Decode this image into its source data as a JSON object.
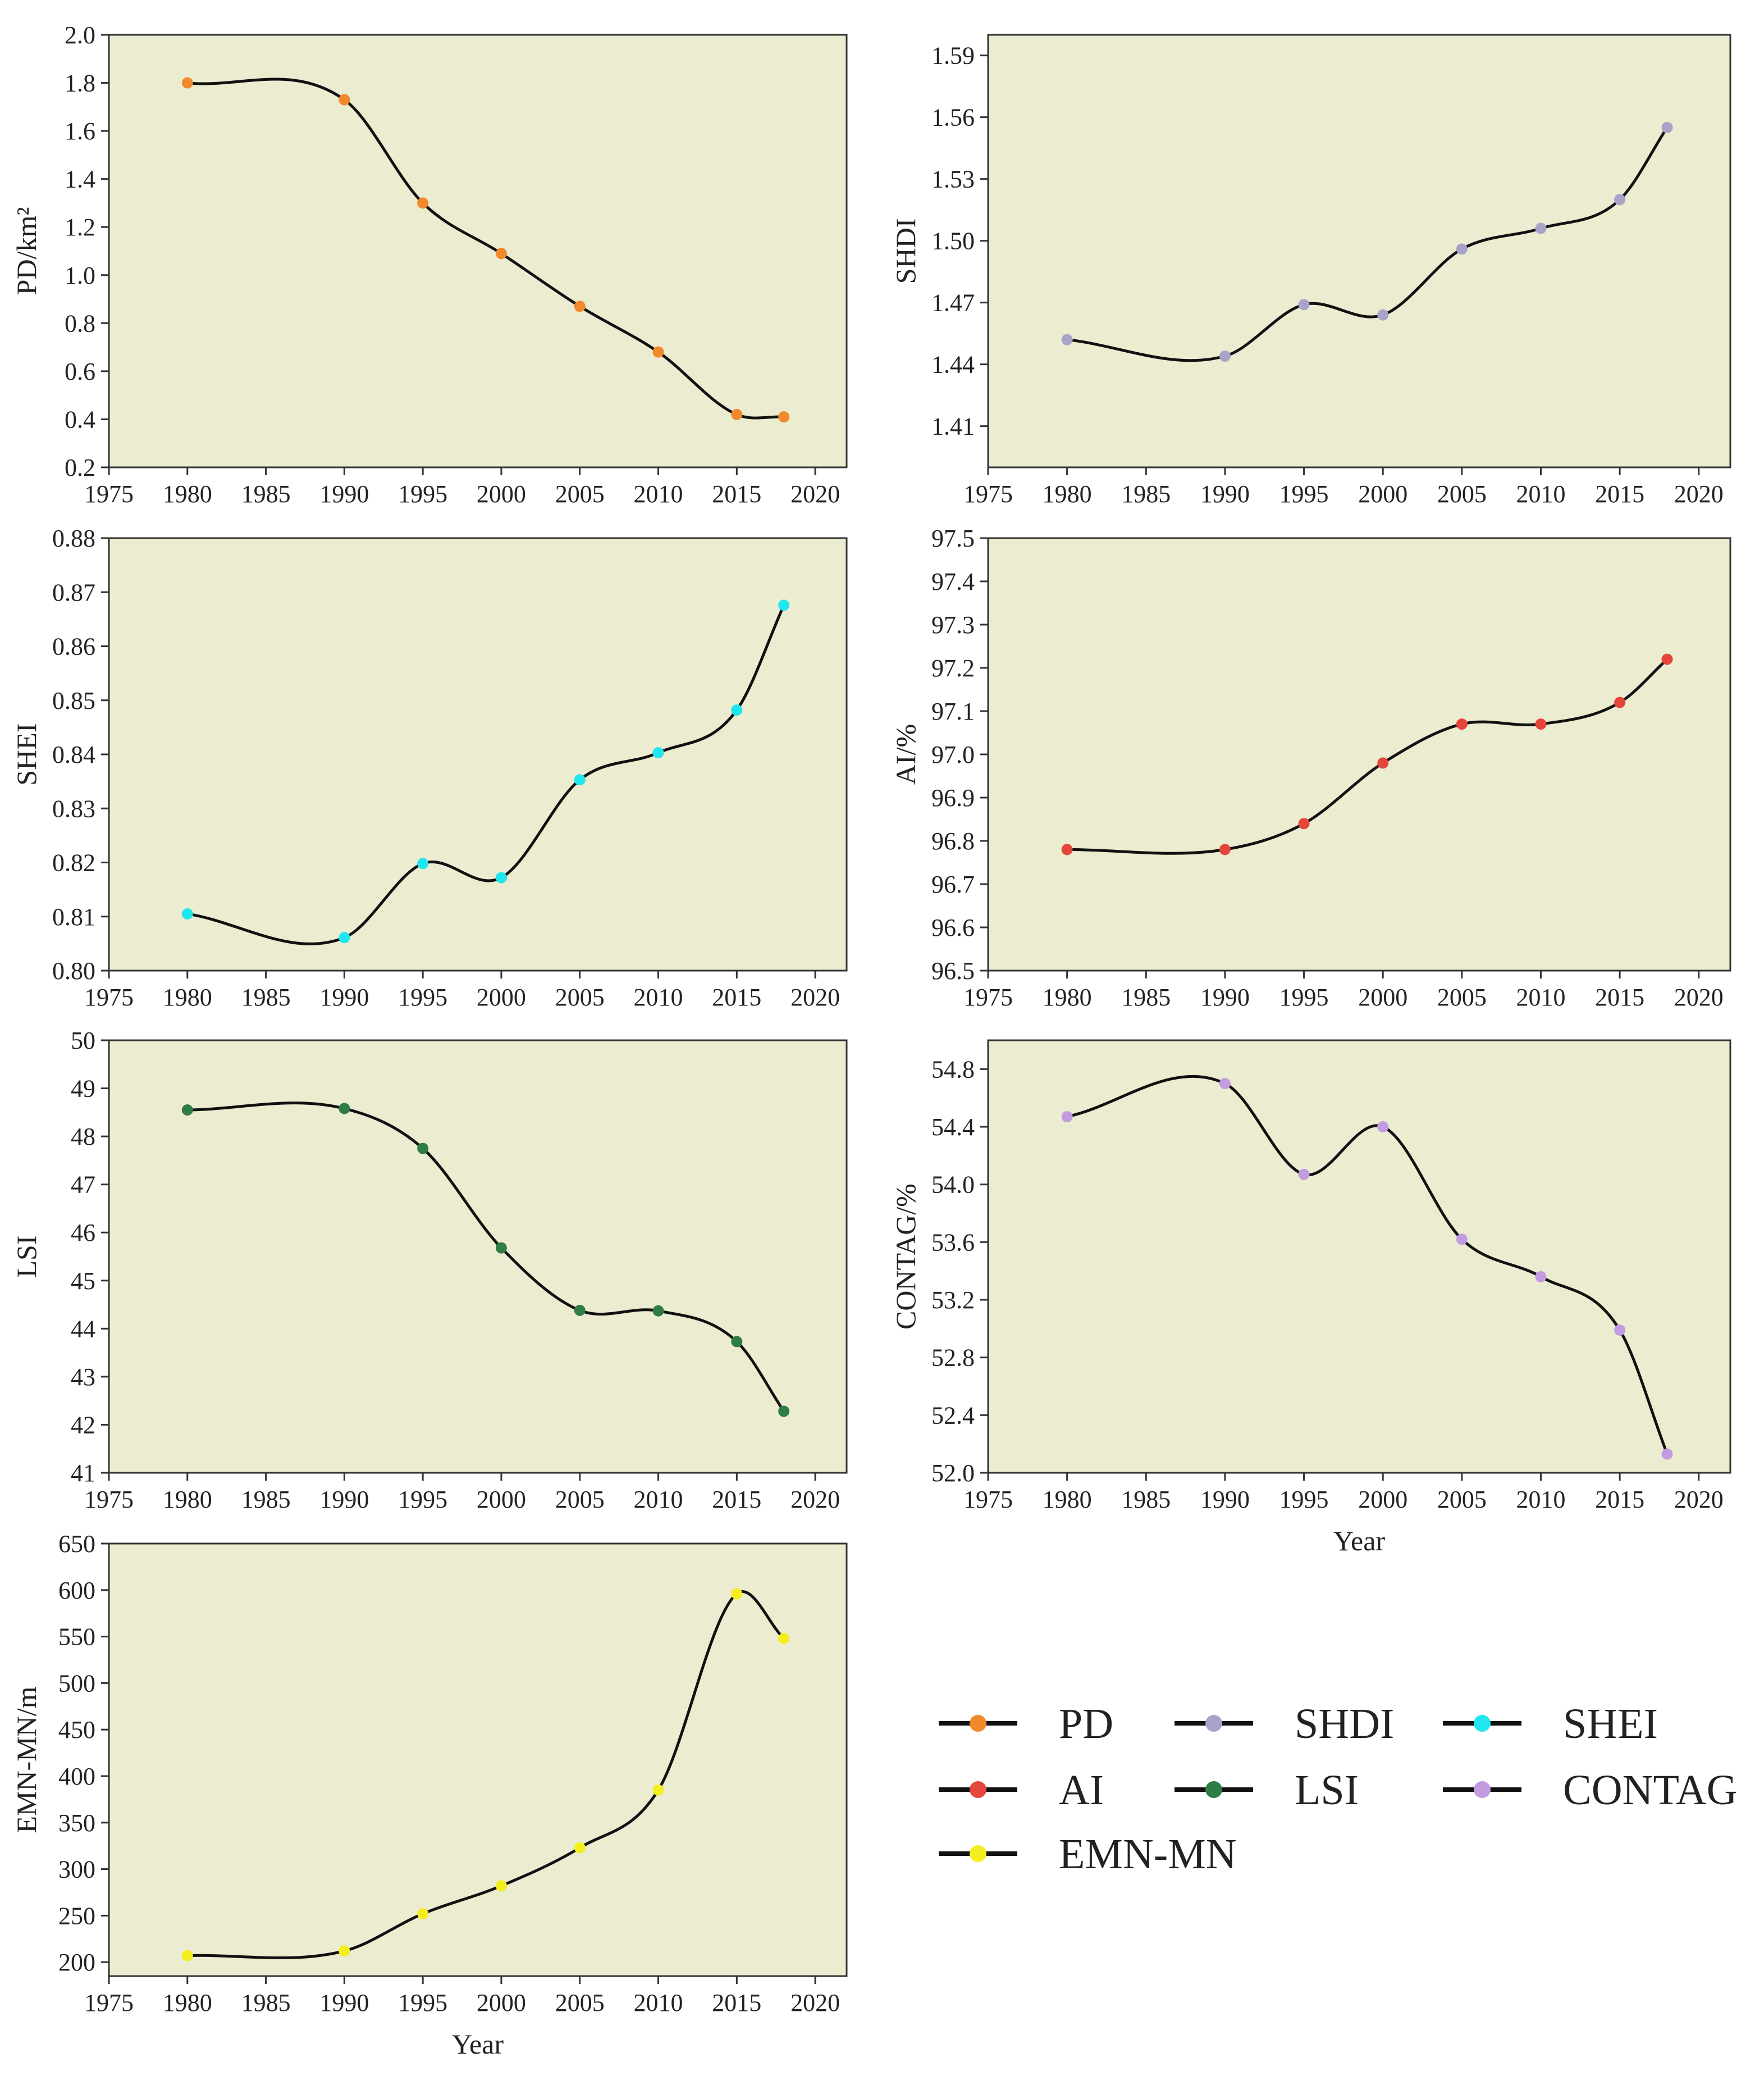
{
  "chart_data": [
    {
      "id": "pd",
      "type": "line",
      "series_name": "PD",
      "color": "#f08a2c",
      "x": [
        1980,
        1990,
        1995,
        2000,
        2005,
        2010,
        2015,
        2018
      ],
      "values": [
        1.8,
        1.73,
        1.3,
        1.09,
        0.87,
        0.68,
        0.42,
        0.41
      ],
      "xlabel": "",
      "ylabel": "PD/km²",
      "xlim": [
        1975,
        2022
      ],
      "ylim": [
        0.2,
        2.0
      ],
      "xticks": [
        "1975",
        "1980",
        "1985",
        "1990",
        "1995",
        "2000",
        "2005",
        "2010",
        "2015",
        "2020"
      ],
      "yticks": [
        "0.2",
        "0.4",
        "0.6",
        "0.8",
        "1.0",
        "1.2",
        "1.4",
        "1.6",
        "1.8",
        "2.0"
      ],
      "background": "#ececd1"
    },
    {
      "id": "shdi",
      "type": "line",
      "series_name": "SHDI",
      "color": "#a9a3c9",
      "x": [
        1980,
        1990,
        1995,
        2000,
        2005,
        2010,
        2015,
        2018
      ],
      "values": [
        1.452,
        1.444,
        1.469,
        1.464,
        1.496,
        1.506,
        1.52,
        1.555
      ],
      "xlabel": "",
      "ylabel": "SHDI",
      "xlim": [
        1975,
        2022
      ],
      "ylim": [
        1.39,
        1.6
      ],
      "xticks": [
        "1975",
        "1980",
        "1985",
        "1990",
        "1995",
        "2000",
        "2005",
        "2010",
        "2015",
        "2020"
      ],
      "yticks": [
        "1.41",
        "1.44",
        "1.47",
        "1.50",
        "1.53",
        "1.56",
        "1.59"
      ],
      "background": "#ececd1"
    },
    {
      "id": "shei",
      "type": "line",
      "series_name": "SHEI",
      "color": "#22e6ee",
      "x": [
        1980,
        1990,
        1995,
        2000,
        2005,
        2010,
        2015,
        2018
      ],
      "values": [
        0.8105,
        0.8061,
        0.8198,
        0.8172,
        0.8353,
        0.8403,
        0.8482,
        0.8676
      ],
      "xlabel": "",
      "ylabel": "SHEI",
      "xlim": [
        1975,
        2022
      ],
      "ylim": [
        0.8,
        0.88
      ],
      "xticks": [
        "1975",
        "1980",
        "1985",
        "1990",
        "1995",
        "2000",
        "2005",
        "2010",
        "2015",
        "2020"
      ],
      "yticks": [
        "0.80",
        "0.81",
        "0.82",
        "0.83",
        "0.84",
        "0.85",
        "0.86",
        "0.87",
        "0.88"
      ],
      "background": "#ececd1"
    },
    {
      "id": "ai",
      "type": "line",
      "series_name": "AI",
      "color": "#e5463c",
      "x": [
        1980,
        1990,
        1995,
        2000,
        2005,
        2010,
        2015,
        2018
      ],
      "values": [
        96.78,
        96.78,
        96.84,
        96.98,
        97.07,
        97.07,
        97.12,
        97.22
      ],
      "xlabel": "",
      "ylabel": "AI/%",
      "xlim": [
        1975,
        2022
      ],
      "ylim": [
        96.5,
        97.5
      ],
      "xticks": [
        "1975",
        "1980",
        "1985",
        "1990",
        "1995",
        "2000",
        "2005",
        "2010",
        "2015",
        "2020"
      ],
      "yticks": [
        "96.5",
        "96.6",
        "96.7",
        "96.8",
        "96.9",
        "97.0",
        "97.1",
        "97.2",
        "97.3",
        "97.4",
        "97.5"
      ],
      "background": "#ececd1"
    },
    {
      "id": "lsi",
      "type": "line",
      "series_name": "LSI",
      "color": "#2e7d45",
      "x": [
        1980,
        1990,
        1995,
        2000,
        2005,
        2010,
        2015,
        2018
      ],
      "values": [
        48.55,
        48.58,
        47.75,
        45.68,
        44.38,
        44.37,
        43.73,
        42.28
      ],
      "xlabel": "",
      "ylabel": "LSI",
      "xlim": [
        1975,
        2022
      ],
      "ylim": [
        41,
        50
      ],
      "xticks": [
        "1975",
        "1980",
        "1985",
        "1990",
        "1995",
        "2000",
        "2005",
        "2010",
        "2015",
        "2020"
      ],
      "yticks": [
        "41",
        "42",
        "43",
        "44",
        "45",
        "46",
        "47",
        "48",
        "49",
        "50"
      ],
      "background": "#ececd1"
    },
    {
      "id": "contag",
      "type": "line",
      "series_name": "CONTAG",
      "color": "#c39be0",
      "x": [
        1980,
        1990,
        1995,
        2000,
        2005,
        2010,
        2015,
        2018
      ],
      "values": [
        54.47,
        54.7,
        54.07,
        54.4,
        53.62,
        53.36,
        52.99,
        52.13
      ],
      "xlabel": "Year",
      "ylabel": "CONTAG/%",
      "xlim": [
        1975,
        2022
      ],
      "ylim": [
        52.0,
        55.0
      ],
      "xticks": [
        "1975",
        "1980",
        "1985",
        "1990",
        "1995",
        "2000",
        "2005",
        "2010",
        "2015",
        "2020"
      ],
      "yticks": [
        "52.0",
        "52.4",
        "52.8",
        "53.2",
        "53.6",
        "54.0",
        "54.4",
        "54.8"
      ],
      "background": "#ececd1"
    },
    {
      "id": "emn",
      "type": "line",
      "series_name": "EMN-MN",
      "color": "#f4ee1e",
      "x": [
        1980,
        1990,
        1995,
        2000,
        2005,
        2010,
        2015,
        2018
      ],
      "values": [
        207,
        212,
        252,
        282,
        323,
        385,
        596,
        548
      ],
      "xlabel": "Year",
      "ylabel": "EMN-MN/m",
      "xlim": [
        1975,
        2022
      ],
      "ylim": [
        185,
        650
      ],
      "xticks": [
        "1975",
        "1980",
        "1985",
        "1990",
        "1995",
        "2000",
        "2005",
        "2010",
        "2015",
        "2020"
      ],
      "yticks": [
        "200",
        "250",
        "300",
        "350",
        "400",
        "450",
        "500",
        "550",
        "600",
        "650"
      ],
      "background": "#ececd1"
    }
  ],
  "legend": {
    "items": [
      {
        "label": "PD",
        "color": "#f08a2c"
      },
      {
        "label": "SHDI",
        "color": "#a9a3c9"
      },
      {
        "label": "SHEI",
        "color": "#22e6ee"
      },
      {
        "label": "AI",
        "color": "#e5463c"
      },
      {
        "label": "LSI",
        "color": "#2e7d45"
      },
      {
        "label": "CONTAG",
        "color": "#c39be0"
      },
      {
        "label": "EMN-MN",
        "color": "#f4ee1e"
      }
    ]
  }
}
